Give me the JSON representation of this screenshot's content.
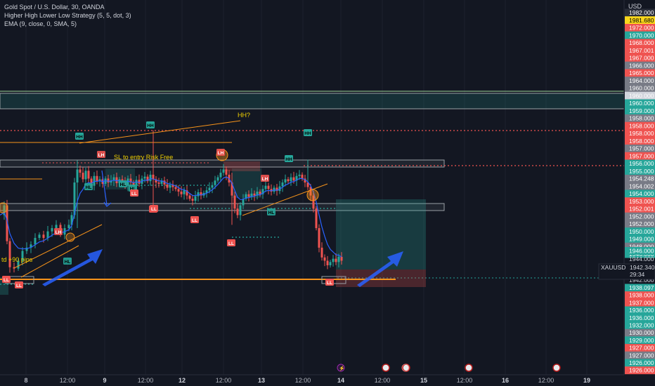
{
  "legend": {
    "title": "Gold Spot / U.S. Dollar, 30, OANDA",
    "indicator1": "Higher High Lower Low Strategy (5, 5, dot, 3)",
    "indicator2": "EMA (9, close, 0, SMA, 5)"
  },
  "currency": "USD",
  "symbol_tag": "XAUUSD",
  "current_price": "1942.340",
  "countdown": "29:34",
  "colors": {
    "background": "#131722",
    "bull": "#26a69a",
    "bear": "#ef5350",
    "orange": "#f7931a",
    "arrow": "#2962ff",
    "yellow": "#f0d000"
  },
  "annotations": {
    "hh_question": "HH?",
    "sl_text": "SL to entry Risk Free",
    "profit_text": "td +90 pips"
  },
  "chart_data": {
    "type": "candlestick",
    "title": "Gold Spot / U.S. Dollar, 30, OANDA",
    "ylim": [
      1925.5,
      1983
    ],
    "x_ticks": [
      "8",
      "12:00",
      "9",
      "12:00",
      "12",
      "12:00",
      "13",
      "12:00",
      "14",
      "12:00",
      "15",
      "12:00",
      "16",
      "12:00",
      "19"
    ],
    "y_ticks": [
      "1982.000",
      "1981.680",
      "1972.000",
      "1970.000",
      "1968.000",
      "1967.001",
      "1967.000",
      "1966.000",
      "1965.000",
      "1964.000",
      "1960.000",
      "1960.000",
      "1960.000",
      "1959.000",
      "1958.000",
      "1958.000",
      "1958.000",
      "1958.000",
      "1957.000",
      "1957.000",
      "1956.000",
      "1955.000",
      "1954.248",
      "1954.002",
      "1954.000",
      "1953.000",
      "1952.001",
      "1952.000",
      "1952.000",
      "1950.000",
      "1949.000",
      "1948.000",
      "1946.000",
      "1944.000",
      "1942.000",
      "1938.097",
      "1938.000",
      "1937.000",
      "1936.000",
      "1936.000",
      "1932.000",
      "1930.000",
      "1929.000",
      "1927.000",
      "1927.000",
      "1926.000",
      "1926.000"
    ],
    "pivot_labels": [
      {
        "label": "HH",
        "x": "Aug 8 23:00",
        "y": 1958.3
      },
      {
        "label": "HH",
        "x": "Aug 9 12:00",
        "y": 1959.9
      },
      {
        "label": "HH",
        "x": "Aug 13 11:00",
        "y": 1956.2
      },
      {
        "label": "HH",
        "x": "Aug 13 13:00",
        "y": 1958.6
      },
      {
        "label": "LH",
        "x": "Aug 9 03:00",
        "y": 1957.0
      },
      {
        "label": "LH",
        "x": "Aug 12 11:00",
        "y": 1957.2
      },
      {
        "label": "LH",
        "x": "Aug 13 04:00",
        "y": 1955.0
      },
      {
        "label": "LH",
        "x": "Aug 8 11:00",
        "y": 1949.2
      },
      {
        "label": "HL",
        "x": "Aug 8 22:00",
        "y": 1954.3
      },
      {
        "label": "HL",
        "x": "Aug 9 04:00",
        "y": 1954.7
      },
      {
        "label": "HL",
        "x": "Aug 9 07:00",
        "y": 1954.3
      },
      {
        "label": "HL",
        "x": "Aug 13 05:00",
        "y": 1951.3
      },
      {
        "label": "HL",
        "x": "Aug 8 12:00",
        "y": 1945.4
      },
      {
        "label": "LL",
        "x": "Aug 9 12:00",
        "y": 1951.6
      },
      {
        "label": "LL",
        "x": "Aug 9 08:00",
        "y": 1953.6
      },
      {
        "label": "LL",
        "x": "Aug 12 03:00",
        "y": 1950.6
      },
      {
        "label": "LL",
        "x": "Aug 12 17:00",
        "y": 1948.3
      },
      {
        "label": "LL",
        "x": "Aug 14 08:00",
        "y": 1941.6
      },
      {
        "label": "LL",
        "x": "Aug 7 23:00",
        "y": 1941.8
      },
      {
        "label": "LL",
        "x": "Aug 8 03:00",
        "y": 1941.4
      }
    ],
    "levels": [
      {
        "name": "zone",
        "from": 1959.5,
        "to": 1960.8
      },
      {
        "name": "resistance",
        "from": 1956.1,
        "to": 1956.6
      },
      {
        "name": "support",
        "from": 1951.8,
        "to": 1952.4
      }
    ]
  }
}
